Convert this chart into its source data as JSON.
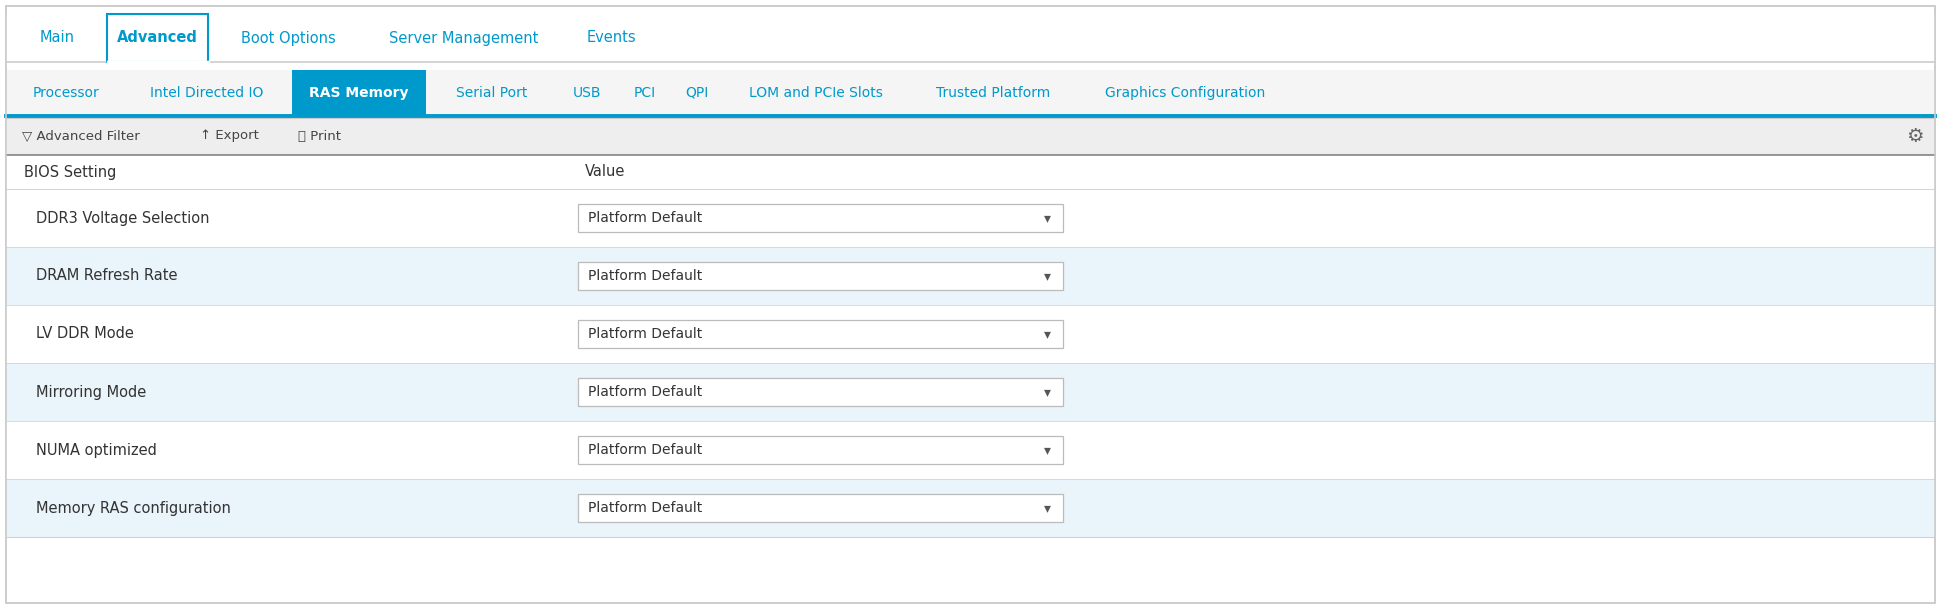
{
  "fig_width": 19.41,
  "fig_height": 6.09,
  "bg_color": "#ffffff",
  "outer_border_color": "#cccccc",
  "top_tabs": [
    "Main",
    "Advanced",
    "Boot Options",
    "Server Management",
    "Events"
  ],
  "top_tab_active": "Advanced",
  "top_tab_active_border": "#0099cc",
  "top_tab_text_color": "#0099cc",
  "sub_tabs": [
    "Processor",
    "Intel Directed IO",
    "RAS Memory",
    "Serial Port",
    "USB",
    "PCI",
    "QPI",
    "LOM and PCIe Slots",
    "Trusted Platform",
    "Graphics Configuration"
  ],
  "sub_tab_active": "RAS Memory",
  "sub_tab_active_bg": "#0099cc",
  "sub_tab_active_text": "#ffffff",
  "sub_tab_text_color": "#0099cc",
  "sub_tab_bar_bg": "#f5f5f5",
  "sub_tab_underline": "#0099cc",
  "toolbar_bg": "#eeeeee",
  "toolbar_text_color": "#444444",
  "table_header_bg": "#ffffff",
  "table_header_text": "#333333",
  "table_col1_header": "BIOS Setting",
  "table_col2_header": "Value",
  "rows": [
    {
      "label": "DDR3 Voltage Selection",
      "value": "Platform Default",
      "bg": "#ffffff"
    },
    {
      "label": "DRAM Refresh Rate",
      "value": "Platform Default",
      "bg": "#eaf4fb"
    },
    {
      "label": "LV DDR Mode",
      "value": "Platform Default",
      "bg": "#ffffff"
    },
    {
      "label": "Mirroring Mode",
      "value": "Platform Default",
      "bg": "#eaf4fb"
    },
    {
      "label": "NUMA optimized",
      "value": "Platform Default",
      "bg": "#ffffff"
    },
    {
      "label": "Memory RAS configuration",
      "value": "Platform Default",
      "bg": "#eaf4fb"
    }
  ],
  "dropdown_bg": "#ffffff",
  "dropdown_border": "#bbbbbb",
  "dropdown_text_color": "#333333",
  "dropdown_arrow_color": "#555555",
  "divider_color": "#cccccc",
  "text_color_dark": "#333333",
  "text_color_blue": "#0099cc",
  "top_tab_widths": [
    70,
    95,
    130,
    185,
    75
  ],
  "sub_tab_widths": [
    105,
    155,
    130,
    115,
    55,
    42,
    42,
    175,
    160,
    205
  ]
}
